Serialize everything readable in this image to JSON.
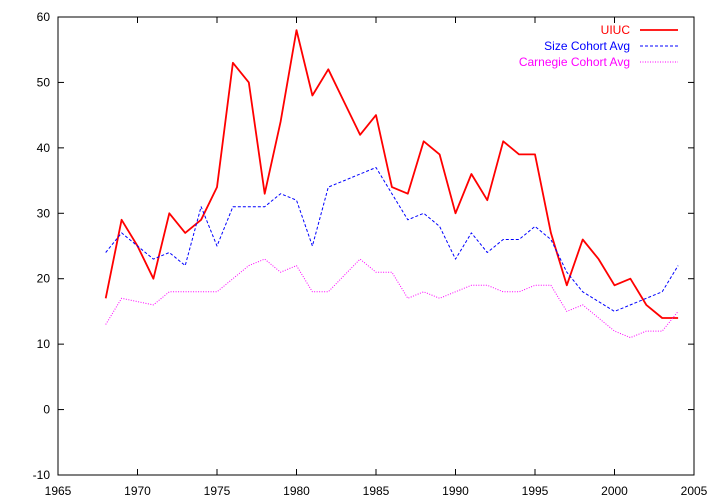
{
  "chart_data": {
    "type": "line",
    "title": "",
    "xlabel": "",
    "ylabel": "",
    "xlim": [
      1965,
      2005
    ],
    "ylim": [
      -10,
      60
    ],
    "x_ticks": [
      1965,
      1970,
      1975,
      1980,
      1985,
      1990,
      1995,
      2000,
      2005
    ],
    "y_ticks": [
      -10,
      0,
      10,
      20,
      30,
      40,
      50,
      60
    ],
    "grid": false,
    "legend_position": "top-right",
    "x": [
      1968,
      1969,
      1970,
      1971,
      1972,
      1973,
      1974,
      1975,
      1976,
      1977,
      1978,
      1979,
      1980,
      1981,
      1982,
      1983,
      1984,
      1985,
      1986,
      1987,
      1988,
      1989,
      1990,
      1991,
      1992,
      1993,
      1994,
      1995,
      1996,
      1997,
      1998,
      1999,
      2000,
      2001,
      2002,
      2003,
      2004
    ],
    "series": [
      {
        "name": "UIUC",
        "color": "#ff0000",
        "style": "solid",
        "values": [
          17,
          29,
          25,
          20,
          30,
          27,
          29,
          34,
          53,
          50,
          33,
          44,
          58,
          48,
          52,
          47,
          42,
          45,
          34,
          33,
          41,
          39,
          30,
          36,
          32,
          41,
          39,
          39,
          27,
          19,
          26,
          23,
          19,
          20,
          16,
          14,
          14
        ]
      },
      {
        "name": "Size Cohort Avg",
        "color": "#0000ff",
        "style": "dashed",
        "values": [
          24,
          27,
          25,
          23,
          24,
          22,
          31,
          25,
          31,
          31,
          31,
          33,
          32,
          25,
          34,
          35,
          36,
          37,
          33,
          29,
          30,
          28,
          23,
          27,
          24,
          26,
          26,
          28,
          26,
          21,
          18,
          16.5,
          15,
          16,
          17,
          18,
          22
        ]
      },
      {
        "name": "Carnegie Cohort Avg",
        "color": "#ff00ff",
        "style": "dotted",
        "values": [
          13,
          17,
          16.5,
          16,
          18,
          18,
          18,
          18,
          20,
          22,
          23,
          21,
          22,
          18,
          18,
          20.5,
          23,
          21,
          21,
          17,
          18,
          17,
          18,
          19,
          19,
          18,
          18,
          19,
          19,
          15,
          16,
          14,
          12,
          11,
          12,
          12,
          15
        ]
      }
    ]
  }
}
